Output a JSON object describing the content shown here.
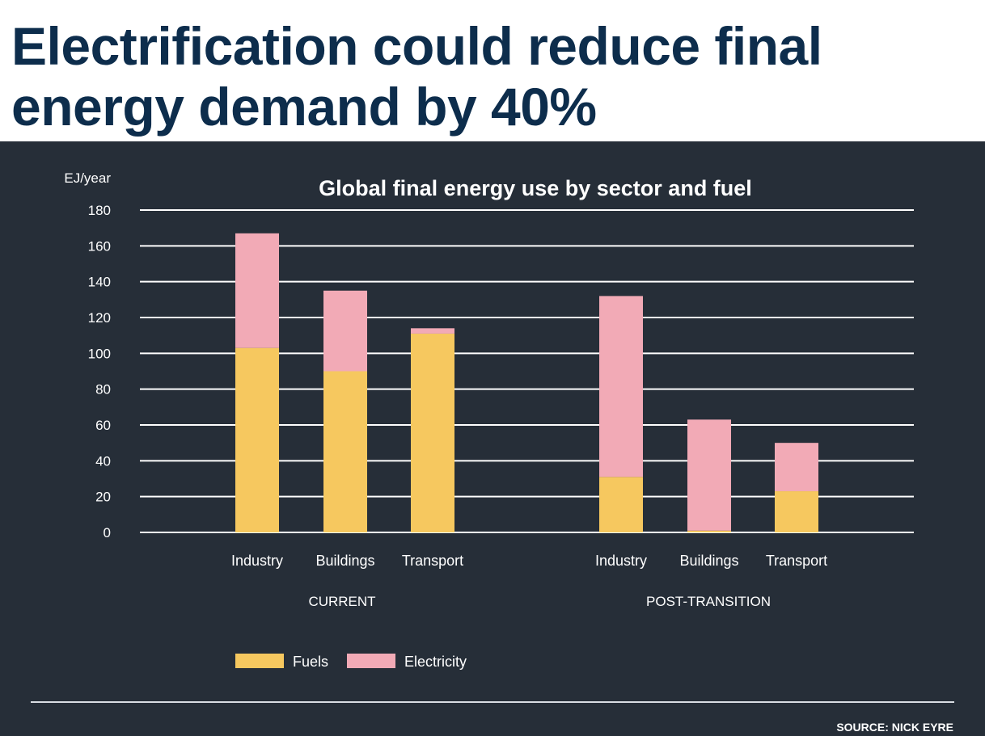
{
  "slide": {
    "title_line1": "Electrification could reduce final",
    "title_line2": "energy demand by 40%",
    "source": "SOURCE: NICK EYRE"
  },
  "colors": {
    "background": "#262e38",
    "title": "#0d2d4c",
    "fuels": "#f6c85f",
    "electricity": "#f2aab6",
    "gridline": "#ffffff",
    "text": "#ffffff"
  },
  "chart_data": {
    "type": "bar",
    "stacked": true,
    "title": "Global final energy use by sector and fuel",
    "ylabel": "EJ/year",
    "ylim": [
      0,
      180
    ],
    "yticks": [
      0,
      20,
      40,
      60,
      80,
      100,
      120,
      140,
      160,
      180
    ],
    "grid": true,
    "legend_placement": "bottom-left",
    "groups": [
      {
        "label": "CURRENT",
        "categories": [
          "Industry",
          "Buildings",
          "Transport"
        ]
      },
      {
        "label": "POST-TRANSITION",
        "categories": [
          "Industry",
          "Buildings",
          "Transport"
        ]
      }
    ],
    "series": [
      {
        "name": "Fuels",
        "color": "#f6c85f",
        "values": [
          103,
          90,
          111,
          31,
          1,
          23
        ]
      },
      {
        "name": "Electricity",
        "color": "#f2aab6",
        "values": [
          64,
          45,
          3,
          101,
          62,
          27
        ]
      }
    ]
  }
}
